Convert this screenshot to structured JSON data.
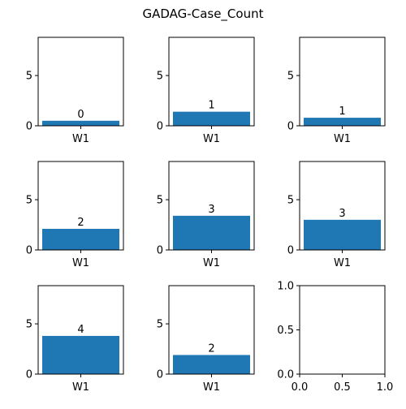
{
  "figure": {
    "title": "GADAG-Case_Count"
  },
  "chart_data": [
    {
      "type": "bar",
      "categories": [
        "W1"
      ],
      "values": [
        0.5
      ],
      "data_labels": [
        "0"
      ],
      "ylim": [
        0,
        8.8
      ],
      "yticks": [
        0,
        5
      ],
      "color": "#1f77b4"
    },
    {
      "type": "bar",
      "categories": [
        "W1"
      ],
      "values": [
        1.4
      ],
      "data_labels": [
        "1"
      ],
      "ylim": [
        0,
        8.8
      ],
      "yticks": [
        0,
        5
      ],
      "color": "#1f77b4"
    },
    {
      "type": "bar",
      "categories": [
        "W1"
      ],
      "values": [
        0.8
      ],
      "data_labels": [
        "1"
      ],
      "ylim": [
        0,
        8.8
      ],
      "yticks": [
        0,
        5
      ],
      "color": "#1f77b4"
    },
    {
      "type": "bar",
      "categories": [
        "W1"
      ],
      "values": [
        2.1
      ],
      "data_labels": [
        "2"
      ],
      "ylim": [
        0,
        8.8
      ],
      "yticks": [
        0,
        5
      ],
      "color": "#1f77b4"
    },
    {
      "type": "bar",
      "categories": [
        "W1"
      ],
      "values": [
        3.4
      ],
      "data_labels": [
        "3"
      ],
      "ylim": [
        0,
        8.8
      ],
      "yticks": [
        0,
        5
      ],
      "color": "#1f77b4"
    },
    {
      "type": "bar",
      "categories": [
        "W1"
      ],
      "values": [
        3.0
      ],
      "data_labels": [
        "3"
      ],
      "ylim": [
        0,
        8.8
      ],
      "yticks": [
        0,
        5
      ],
      "color": "#1f77b4"
    },
    {
      "type": "bar",
      "categories": [
        "W1"
      ],
      "values": [
        3.8
      ],
      "data_labels": [
        "4"
      ],
      "ylim": [
        0,
        8.8
      ],
      "yticks": [
        0,
        5
      ],
      "color": "#1f77b4"
    },
    {
      "type": "bar",
      "categories": [
        "W1"
      ],
      "values": [
        1.9
      ],
      "data_labels": [
        "2"
      ],
      "ylim": [
        0,
        8.8
      ],
      "yticks": [
        0,
        5
      ],
      "color": "#1f77b4"
    },
    {
      "type": "empty",
      "xlim": [
        0,
        1
      ],
      "ylim": [
        0,
        1
      ],
      "xticks": [
        "0.0",
        "0.5",
        "1.0"
      ],
      "yticks": [
        "0.0",
        "0.5",
        "1.0"
      ]
    }
  ]
}
